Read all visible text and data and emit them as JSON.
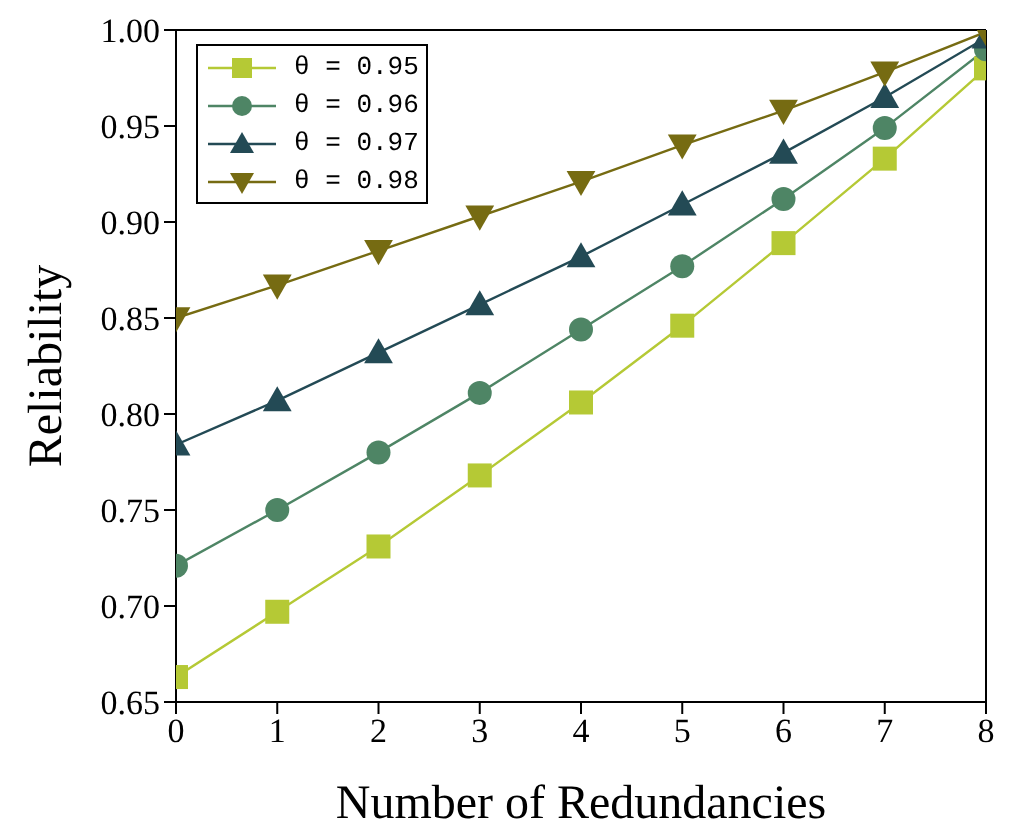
{
  "chart_data": {
    "type": "line",
    "xlabel": "Number of Redundancies",
    "ylabel": "Reliability",
    "x": [
      0,
      1,
      2,
      3,
      4,
      5,
      6,
      7,
      8
    ],
    "series": [
      {
        "name": "θ = 0.95",
        "color": "#b5c935",
        "marker": "square",
        "values": [
          0.663,
          0.697,
          0.731,
          0.768,
          0.806,
          0.846,
          0.889,
          0.933,
          0.98
        ]
      },
      {
        "name": "θ = 0.96",
        "color": "#4e8565",
        "marker": "circle",
        "values": [
          0.721,
          0.75,
          0.78,
          0.811,
          0.844,
          0.877,
          0.912,
          0.949,
          0.99
        ]
      },
      {
        "name": "θ = 0.97",
        "color": "#234a55",
        "marker": "triangle",
        "values": [
          0.784,
          0.807,
          0.832,
          0.857,
          0.882,
          0.909,
          0.936,
          0.965,
          0.996
        ]
      },
      {
        "name": "θ = 0.98",
        "color": "#766b12",
        "marker": "triangle-down",
        "values": [
          0.85,
          0.867,
          0.885,
          0.903,
          0.921,
          0.94,
          0.958,
          0.978,
          0.999
        ]
      }
    ],
    "xlim": [
      0,
      8
    ],
    "xticks": [
      0,
      1,
      2,
      3,
      4,
      5,
      6,
      7,
      8
    ],
    "ylim": [
      0.65,
      1.0
    ],
    "yticks": [
      {
        "value": 0.65,
        "label": "0.65"
      },
      {
        "value": 0.7,
        "label": "0.70"
      },
      {
        "value": 0.75,
        "label": "0.75"
      },
      {
        "value": 0.8,
        "label": "0.80"
      },
      {
        "value": 0.85,
        "label": "0.85"
      },
      {
        "value": 0.9,
        "label": "0.90"
      },
      {
        "value": 0.95,
        "label": "0.95"
      },
      {
        "value": 1.0,
        "label": "1.00"
      }
    ],
    "legend": "top left",
    "grid": false,
    "line_style": "solid"
  }
}
